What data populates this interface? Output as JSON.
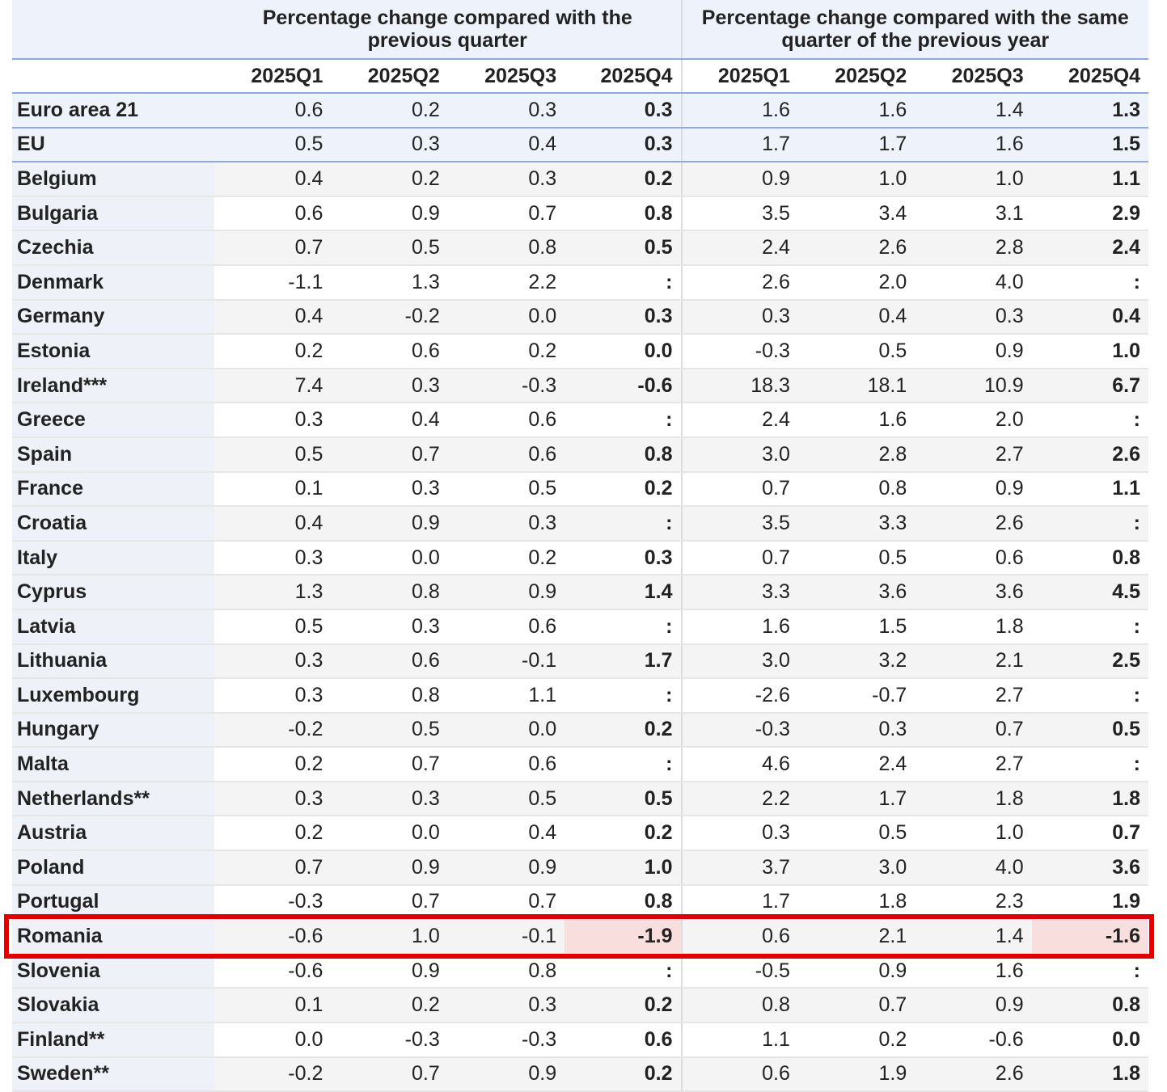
{
  "header": {
    "groups": [
      "Percentage change compared with the previous quarter",
      "Percentage change compared with the same quarter of the previous year"
    ],
    "quarters": [
      "2025Q1",
      "2025Q2",
      "2025Q3",
      "2025Q4",
      "2025Q1",
      "2025Q2",
      "2025Q3",
      "2025Q4"
    ]
  },
  "table": {
    "rows": [
      {
        "label": "Euro area 21",
        "values": [
          "0.6",
          "0.2",
          "0.3",
          "0.3",
          "1.6",
          "1.6",
          "1.4",
          "1.3"
        ]
      },
      {
        "label": "EU",
        "values": [
          "0.5",
          "0.3",
          "0.4",
          "0.3",
          "1.7",
          "1.7",
          "1.6",
          "1.5"
        ]
      },
      {
        "label": "Belgium",
        "values": [
          "0.4",
          "0.2",
          "0.3",
          "0.2",
          "0.9",
          "1.0",
          "1.0",
          "1.1"
        ]
      },
      {
        "label": "Bulgaria",
        "values": [
          "0.6",
          "0.9",
          "0.7",
          "0.8",
          "3.5",
          "3.4",
          "3.1",
          "2.9"
        ]
      },
      {
        "label": "Czechia",
        "values": [
          "0.7",
          "0.5",
          "0.8",
          "0.5",
          "2.4",
          "2.6",
          "2.8",
          "2.4"
        ]
      },
      {
        "label": "Denmark",
        "values": [
          "-1.1",
          "1.3",
          "2.2",
          ":",
          "2.6",
          "2.0",
          "4.0",
          ":"
        ]
      },
      {
        "label": "Germany",
        "values": [
          "0.4",
          "-0.2",
          "0.0",
          "0.3",
          "0.3",
          "0.4",
          "0.3",
          "0.4"
        ]
      },
      {
        "label": "Estonia",
        "values": [
          "0.2",
          "0.6",
          "0.2",
          "0.0",
          "-0.3",
          "0.5",
          "0.9",
          "1.0"
        ]
      },
      {
        "label": "Ireland***",
        "values": [
          "7.4",
          "0.3",
          "-0.3",
          "-0.6",
          "18.3",
          "18.1",
          "10.9",
          "6.7"
        ]
      },
      {
        "label": "Greece",
        "values": [
          "0.3",
          "0.4",
          "0.6",
          ":",
          "2.4",
          "1.6",
          "2.0",
          ":"
        ]
      },
      {
        "label": "Spain",
        "values": [
          "0.5",
          "0.7",
          "0.6",
          "0.8",
          "3.0",
          "2.8",
          "2.7",
          "2.6"
        ]
      },
      {
        "label": "France",
        "values": [
          "0.1",
          "0.3",
          "0.5",
          "0.2",
          "0.7",
          "0.8",
          "0.9",
          "1.1"
        ]
      },
      {
        "label": "Croatia",
        "values": [
          "0.4",
          "0.9",
          "0.3",
          ":",
          "3.5",
          "3.3",
          "2.6",
          ":"
        ]
      },
      {
        "label": "Italy",
        "values": [
          "0.3",
          "0.0",
          "0.2",
          "0.3",
          "0.7",
          "0.5",
          "0.6",
          "0.8"
        ]
      },
      {
        "label": "Cyprus",
        "values": [
          "1.3",
          "0.8",
          "0.9",
          "1.4",
          "3.3",
          "3.6",
          "3.6",
          "4.5"
        ]
      },
      {
        "label": "Latvia",
        "values": [
          "0.5",
          "0.3",
          "0.6",
          ":",
          "1.6",
          "1.5",
          "1.8",
          ":"
        ]
      },
      {
        "label": "Lithuania",
        "values": [
          "0.3",
          "0.6",
          "-0.1",
          "1.7",
          "3.0",
          "3.2",
          "2.1",
          "2.5"
        ]
      },
      {
        "label": "Luxembourg",
        "values": [
          "0.3",
          "0.8",
          "1.1",
          ":",
          "-2.6",
          "-0.7",
          "2.7",
          ":"
        ]
      },
      {
        "label": "Hungary",
        "values": [
          "-0.2",
          "0.5",
          "0.0",
          "0.2",
          "-0.3",
          "0.3",
          "0.7",
          "0.5"
        ]
      },
      {
        "label": "Malta",
        "values": [
          "0.2",
          "0.7",
          "0.6",
          ":",
          "4.6",
          "2.4",
          "2.7",
          ":"
        ]
      },
      {
        "label": "Netherlands**",
        "values": [
          "0.3",
          "0.3",
          "0.5",
          "0.5",
          "2.2",
          "1.7",
          "1.8",
          "1.8"
        ]
      },
      {
        "label": "Austria",
        "values": [
          "0.2",
          "0.0",
          "0.4",
          "0.2",
          "0.3",
          "0.5",
          "1.0",
          "0.7"
        ]
      },
      {
        "label": "Poland",
        "values": [
          "0.7",
          "0.9",
          "0.9",
          "1.0",
          "3.7",
          "3.0",
          "4.0",
          "3.6"
        ]
      },
      {
        "label": "Portugal",
        "values": [
          "-0.3",
          "0.7",
          "0.7",
          "0.8",
          "1.7",
          "1.8",
          "2.3",
          "1.9"
        ]
      },
      {
        "label": "Romania",
        "values": [
          "-0.6",
          "1.0",
          "-0.1",
          "-1.9",
          "0.6",
          "2.1",
          "1.4",
          "-1.6"
        ]
      },
      {
        "label": "Slovenia",
        "values": [
          "-0.6",
          "0.9",
          "0.8",
          ":",
          "-0.5",
          "0.9",
          "1.6",
          ":"
        ]
      },
      {
        "label": "Slovakia",
        "values": [
          "0.1",
          "0.2",
          "0.3",
          "0.2",
          "0.8",
          "0.7",
          "0.9",
          "0.8"
        ]
      },
      {
        "label": "Finland**",
        "values": [
          "0.0",
          "-0.3",
          "-0.3",
          "0.6",
          "1.1",
          "0.2",
          "-0.6",
          "0.0"
        ]
      },
      {
        "label": "Sweden**",
        "values": [
          "-0.2",
          "0.7",
          "0.9",
          "0.2",
          "0.6",
          "1.9",
          "2.6",
          "1.8"
        ]
      }
    ]
  }
}
